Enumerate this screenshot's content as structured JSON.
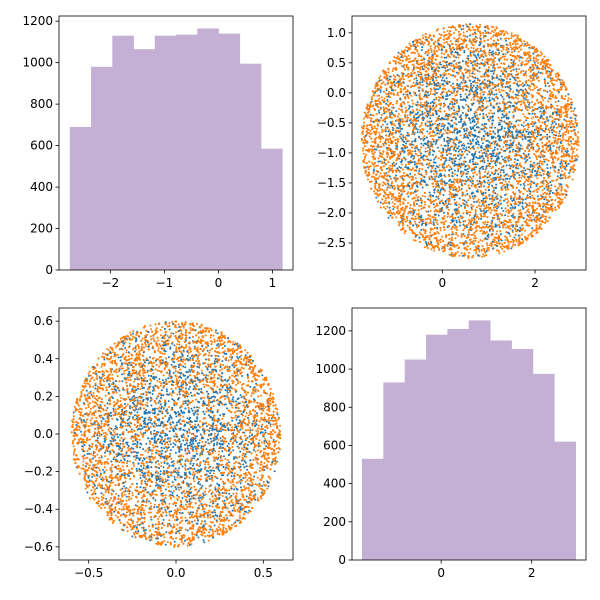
{
  "figure": {
    "layout": "2x2 grid"
  },
  "colors": {
    "hist_fill": "#c5b0d5",
    "scatter_inner": "#1f77b4",
    "scatter_outer": "#ff7f0e",
    "axes": "#000000",
    "background": "#ffffff"
  },
  "chart_data": [
    {
      "type": "bar",
      "subtype": "histogram",
      "title": "",
      "xlabel": "",
      "ylabel": "",
      "bin_edges": [
        -2.75,
        -2.357,
        -1.964,
        -1.571,
        -1.178,
        -0.785,
        -0.392,
        0.001,
        0.394,
        0.787,
        1.18
      ],
      "values": [
        690,
        980,
        1130,
        1065,
        1130,
        1135,
        1165,
        1140,
        995,
        585
      ],
      "xlim": [
        -2.95,
        1.38
      ],
      "ylim": [
        0,
        1225
      ],
      "xticks": [
        -2,
        -1,
        0,
        1
      ],
      "xtick_labels": [
        "−2",
        "−1",
        "0",
        "1"
      ],
      "yticks": [
        0,
        200,
        400,
        600,
        800,
        1000,
        1200
      ],
      "ytick_labels": [
        "0",
        "200",
        "400",
        "600",
        "800",
        "1000",
        "1200"
      ],
      "grid": false
    },
    {
      "type": "scatter",
      "title": "",
      "xlabel": "",
      "ylabel": "",
      "shape": "disc",
      "center": [
        0.6,
        -0.8
      ],
      "radius_x": 2.35,
      "radius_y": 1.95,
      "series": [
        {
          "color_key": "scatter_inner",
          "region": "inner",
          "points": 2200
        },
        {
          "color_key": "scatter_outer",
          "region": "outer",
          "points": 4200
        }
      ],
      "xlim": [
        -1.95,
        3.1
      ],
      "ylim": [
        -2.95,
        1.28
      ],
      "xticks": [
        0,
        2
      ],
      "xtick_labels": [
        "0",
        "2"
      ],
      "yticks": [
        -2.5,
        -2.0,
        -1.5,
        -1.0,
        -0.5,
        0.0,
        0.5,
        1.0
      ],
      "ytick_labels": [
        "−2.5",
        "−2.0",
        "−1.5",
        "−1.0",
        "−0.5",
        "0.0",
        "0.5",
        "1.0"
      ],
      "grid": false
    },
    {
      "type": "scatter",
      "title": "",
      "xlabel": "",
      "ylabel": "",
      "shape": "disc",
      "center": [
        0.0,
        0.0
      ],
      "radius_x": 0.6,
      "radius_y": 0.6,
      "series": [
        {
          "color_key": "scatter_inner",
          "region": "inner",
          "points": 2200
        },
        {
          "color_key": "scatter_outer",
          "region": "outer",
          "points": 4200
        }
      ],
      "xlim": [
        -0.67,
        0.67
      ],
      "ylim": [
        -0.67,
        0.67
      ],
      "xticks": [
        -0.5,
        0.0,
        0.5
      ],
      "xtick_labels": [
        "−0.5",
        "0.0",
        "0.5"
      ],
      "yticks": [
        -0.6,
        -0.4,
        -0.2,
        0.0,
        0.2,
        0.4,
        0.6
      ],
      "ytick_labels": [
        "−0.6",
        "−0.4",
        "−0.2",
        "0.0",
        "0.2",
        "0.4",
        "0.6"
      ],
      "grid": false
    },
    {
      "type": "bar",
      "subtype": "histogram",
      "title": "",
      "xlabel": "",
      "ylabel": "",
      "bin_edges": [
        -1.75,
        -1.278,
        -0.806,
        -0.334,
        0.138,
        0.61,
        1.082,
        1.554,
        2.026,
        2.498,
        2.97
      ],
      "values": [
        530,
        930,
        1050,
        1180,
        1210,
        1255,
        1150,
        1105,
        975,
        620
      ],
      "xlim": [
        -1.97,
        3.2
      ],
      "ylim": [
        0,
        1320
      ],
      "xticks": [
        0,
        2
      ],
      "xtick_labels": [
        "0",
        "2"
      ],
      "yticks": [
        0,
        200,
        400,
        600,
        800,
        1000,
        1200
      ],
      "ytick_labels": [
        "0",
        "200",
        "400",
        "600",
        "800",
        "1000",
        "1200"
      ],
      "grid": false
    }
  ]
}
